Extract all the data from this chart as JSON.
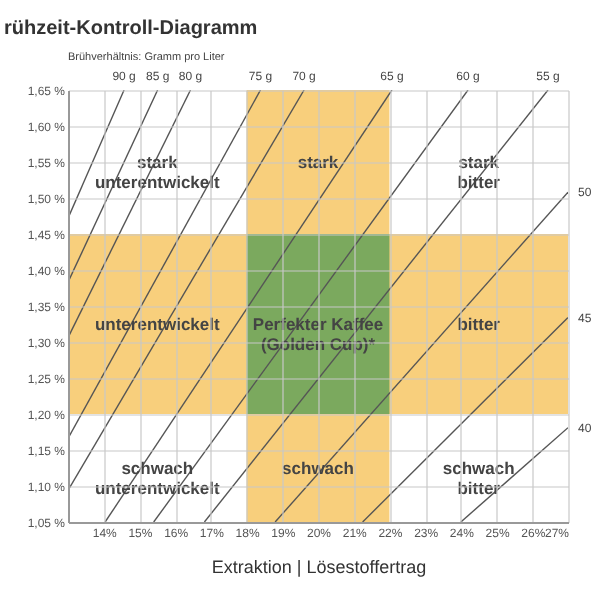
{
  "chart_data": {
    "type": "line",
    "title": "rühzeit-Kontroll-Diagramm",
    "subtitle": "Brühverhältnis: Gramm pro Liter",
    "xlabel": "Extraktion | Lösestoffertrag",
    "xlim": [
      13,
      27
    ],
    "ylim": [
      1.05,
      1.65
    ],
    "xticks": [
      {
        "value": 14,
        "label": "14%"
      },
      {
        "value": 15,
        "label": "15%"
      },
      {
        "value": 16,
        "label": "16%"
      },
      {
        "value": 17,
        "label": "17%"
      },
      {
        "value": 18,
        "label": "18%"
      },
      {
        "value": 19,
        "label": "19%"
      },
      {
        "value": 20,
        "label": "20%"
      },
      {
        "value": 21,
        "label": "21%"
      },
      {
        "value": 22,
        "label": "22%"
      },
      {
        "value": 23,
        "label": "23%"
      },
      {
        "value": 24,
        "label": "24%"
      },
      {
        "value": 25,
        "label": "25%"
      },
      {
        "value": 26,
        "label": "26%"
      },
      {
        "value": 27,
        "label": "27%"
      }
    ],
    "yticks": [
      {
        "value": 1.05,
        "label": "1,05 %"
      },
      {
        "value": 1.1,
        "label": "1,10 %"
      },
      {
        "value": 1.15,
        "label": "1,15 %"
      },
      {
        "value": 1.2,
        "label": "1,20 %"
      },
      {
        "value": 1.25,
        "label": "1,25 %"
      },
      {
        "value": 1.3,
        "label": "1,30 %"
      },
      {
        "value": 1.35,
        "label": "1,35 %"
      },
      {
        "value": 1.4,
        "label": "1,40 %"
      },
      {
        "value": 1.45,
        "label": "1,45 %"
      },
      {
        "value": 1.5,
        "label": "1,50 %"
      },
      {
        "value": 1.55,
        "label": "1,55 %"
      },
      {
        "value": 1.6,
        "label": "1,60 %"
      },
      {
        "value": 1.65,
        "label": "1,65 %"
      }
    ],
    "grid": true,
    "marker": "none",
    "line_style": "solid",
    "bands": [
      {
        "axis": "y",
        "from": 1.2,
        "to": 1.45,
        "color": "#f8cf7c"
      },
      {
        "axis": "x",
        "from": 18,
        "to": 22,
        "color": "#f8cf7c"
      },
      {
        "axis": "x",
        "from": 18,
        "to": 22,
        "color": "#7ba95e"
      }
    ],
    "series": [
      {
        "name": "90 g",
        "color": "#555555",
        "x": [
          13,
          14.57
        ],
        "values": [
          1.472,
          1.65
        ]
      },
      {
        "name": "85 g",
        "color": "#555555",
        "x": [
          13,
          15.51
        ],
        "values": [
          1.383,
          1.65
        ]
      },
      {
        "name": "80 g",
        "color": "#555555",
        "x": [
          13,
          16.43
        ],
        "values": [
          1.306,
          1.65
        ]
      },
      {
        "name": "75 g",
        "color": "#555555",
        "x": [
          13,
          18.39
        ],
        "values": [
          1.166,
          1.65
        ]
      },
      {
        "name": "70 g",
        "color": "#555555",
        "x": [
          13,
          19.61
        ],
        "values": [
          1.094,
          1.65
        ]
      },
      {
        "name": "65 g",
        "color": "#555555",
        "x": [
          14.04,
          22.07
        ],
        "values": [
          1.05,
          1.65
        ]
      },
      {
        "name": "60 g",
        "color": "#555555",
        "x": [
          15.4,
          24.2
        ],
        "values": [
          1.05,
          1.65
        ]
      },
      {
        "name": "55 g",
        "color": "#555555",
        "x": [
          16.82,
          26.44
        ],
        "values": [
          1.05,
          1.65
        ]
      },
      {
        "name": "50",
        "color": "#555555",
        "x": [
          18.8,
          27
        ],
        "values": [
          1.05,
          1.508
        ]
      },
      {
        "name": "45",
        "color": "#555555",
        "x": [
          21.25,
          27
        ],
        "values": [
          1.05,
          1.334
        ]
      },
      {
        "name": "40",
        "color": "#555555",
        "x": [
          24,
          27
        ],
        "values": [
          1.05,
          1.181
        ]
      }
    ],
    "annotations": [
      "stark\nunterentwickelt",
      "stark",
      "stark\nbitter",
      "unterentwickelt",
      "Perfekter Kaffee\n(Golden Cup)*",
      "bitter",
      "schwach\nunterentwickelt",
      "schwach",
      "schwach\nbitter"
    ]
  }
}
